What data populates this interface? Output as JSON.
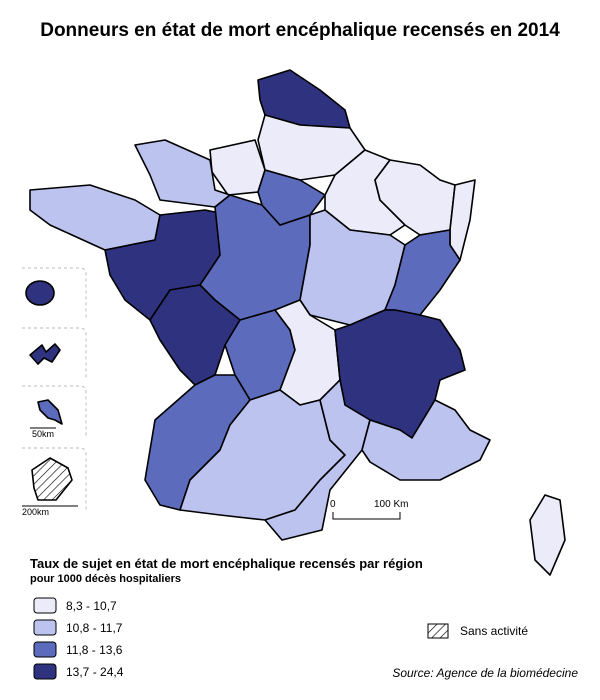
{
  "title": "Donneurs en état de mort encéphalique recensés en 2014",
  "map": {
    "scale_labels": [
      "0",
      "100 Km"
    ],
    "inset_scales": [
      "50km",
      "200km"
    ]
  },
  "legend": {
    "title": "Taux de sujet en état de mort encéphalique recensés par région",
    "subtitle": "pour 1000 décès hospitaliers",
    "classes": [
      {
        "label": "8,3 - 10,7",
        "color": "#ebebfa"
      },
      {
        "label": "10,8 - 11,7",
        "color": "#bcc3ef"
      },
      {
        "label": "11,8 - 13,6",
        "color": "#5d6bbc"
      },
      {
        "label": "13,7 - 24,4",
        "color": "#2f337f"
      }
    ],
    "no_activity": "Sans activité"
  },
  "source": "Source: Agence de la biomédecine"
}
